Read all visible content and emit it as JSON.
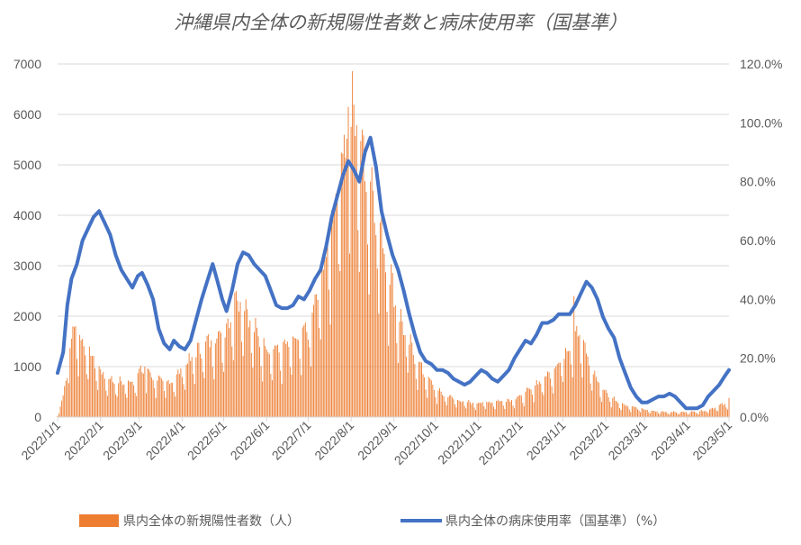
{
  "chart_data": {
    "type": "bar+line",
    "title": "沖縄県内全体の新規陽性者数と病床使用率（国基準）",
    "y_left_ticks": [
      "0",
      "1000",
      "2000",
      "3000",
      "4000",
      "5000",
      "6000",
      "7000"
    ],
    "y_right_ticks": [
      "0.0%",
      "20.0%",
      "40.0%",
      "60.0%",
      "80.0%",
      "100.0%",
      "120.0%"
    ],
    "x_ticks": [
      "2022/1/1",
      "2022/2/1",
      "2022/3/1",
      "2022/4/1",
      "2022/5/1",
      "2022/6/1",
      "2022/7/1",
      "2022/8/1",
      "2022/9/1",
      "2022/10/1",
      "2022/11/1",
      "2022/12/1",
      "2023/1/1",
      "2023/2/1",
      "2023/3/1",
      "2023/4/1",
      "2023/5/1"
    ],
    "ylim_left": [
      0,
      7000
    ],
    "ylim_right": [
      0,
      120
    ],
    "xlim": [
      "2022/1/1",
      "2023/5/1"
    ],
    "grid": "horizontal",
    "legend_position": "bottom",
    "colors": {
      "bars": "#ED7D31",
      "line": "#4472C4",
      "grid": "#D9D9D9",
      "text": "#595959"
    },
    "series": [
      {
        "name": "県内全体の新規陽性者数（人）",
        "type": "bar",
        "axis": "left",
        "anchors_approx": [
          [
            "2022/1/1",
            30
          ],
          [
            "2022/1/5",
            400
          ],
          [
            "2022/1/9",
            1200
          ],
          [
            "2022/1/13",
            1700
          ],
          [
            "2022/1/17",
            1500
          ],
          [
            "2022/1/22",
            1300
          ],
          [
            "2022/1/28",
            1050
          ],
          [
            "2022/2/3",
            800
          ],
          [
            "2022/2/10",
            700
          ],
          [
            "2022/2/18",
            650
          ],
          [
            "2022/2/25",
            700
          ],
          [
            "2022/3/3",
            900
          ],
          [
            "2022/3/8",
            850
          ],
          [
            "2022/3/15",
            700
          ],
          [
            "2022/3/22",
            650
          ],
          [
            "2022/3/29",
            800
          ],
          [
            "2022/4/4",
            1000
          ],
          [
            "2022/4/10",
            1200
          ],
          [
            "2022/4/17",
            1350
          ],
          [
            "2022/4/24",
            1500
          ],
          [
            "2022/5/2",
            1650
          ],
          [
            "2022/5/10",
            2300
          ],
          [
            "2022/5/15",
            2250
          ],
          [
            "2022/5/22",
            1700
          ],
          [
            "2022/5/29",
            1400
          ],
          [
            "2022/6/5",
            1300
          ],
          [
            "2022/6/12",
            1300
          ],
          [
            "2022/6/19",
            1400
          ],
          [
            "2022/6/26",
            1500
          ],
          [
            "2022/7/3",
            1800
          ],
          [
            "2022/7/10",
            2600
          ],
          [
            "2022/7/16",
            3400
          ],
          [
            "2022/7/22",
            4500
          ],
          [
            "2022/7/27",
            5300
          ],
          [
            "2022/8/1",
            5700
          ],
          [
            "2022/8/6",
            5500
          ],
          [
            "2022/8/11",
            5000
          ],
          [
            "2022/8/17",
            4300
          ],
          [
            "2022/8/23",
            3500
          ],
          [
            "2022/8/29",
            2700
          ],
          [
            "2022/9/5",
            1900
          ],
          [
            "2022/9/12",
            1400
          ],
          [
            "2022/9/19",
            1000
          ],
          [
            "2022/9/26",
            700
          ],
          [
            "2022/10/3",
            480
          ],
          [
            "2022/10/12",
            380
          ],
          [
            "2022/10/20",
            300
          ],
          [
            "2022/10/28",
            270
          ],
          [
            "2022/11/5",
            280
          ],
          [
            "2022/11/13",
            300
          ],
          [
            "2022/11/21",
            320
          ],
          [
            "2022/11/28",
            350
          ],
          [
            "2022/12/5",
            450
          ],
          [
            "2022/12/12",
            620
          ],
          [
            "2022/12/19",
            750
          ],
          [
            "2022/12/26",
            950
          ],
          [
            "2023/1/2",
            1200
          ],
          [
            "2023/1/7",
            1500
          ],
          [
            "2023/1/11",
            1700
          ],
          [
            "2023/1/16",
            1350
          ],
          [
            "2023/1/22",
            900
          ],
          [
            "2023/1/29",
            550
          ],
          [
            "2023/2/5",
            380
          ],
          [
            "2023/2/12",
            260
          ],
          [
            "2023/2/19",
            200
          ],
          [
            "2023/2/28",
            150
          ],
          [
            "2023/3/8",
            110
          ],
          [
            "2023/3/18",
            100
          ],
          [
            "2023/3/28",
            95
          ],
          [
            "2023/4/5",
            100
          ],
          [
            "2023/4/12",
            120
          ],
          [
            "2023/4/18",
            160
          ],
          [
            "2023/4/24",
            220
          ],
          [
            "2023/5/1",
            270
          ]
        ],
        "peaks": [
          [
            "2022/1/14",
            1800
          ],
          [
            "2022/3/5",
            1000
          ],
          [
            "2022/5/10",
            2500
          ],
          [
            "2022/7/30",
            6150
          ],
          [
            "2022/8/9",
            5700
          ],
          [
            "2023/1/9",
            2400
          ],
          [
            "2023/5/1",
            380
          ]
        ]
      },
      {
        "name": "県内全体の病床使用率（国基準）（%）",
        "type": "line",
        "axis": "right",
        "points_approx": [
          [
            "2022/1/1",
            15
          ],
          [
            "2022/1/5",
            22
          ],
          [
            "2022/1/8",
            38
          ],
          [
            "2022/1/11",
            47
          ],
          [
            "2022/1/15",
            52
          ],
          [
            "2022/1/19",
            60
          ],
          [
            "2022/1/23",
            64
          ],
          [
            "2022/1/27",
            68
          ],
          [
            "2022/1/31",
            70
          ],
          [
            "2022/2/4",
            66
          ],
          [
            "2022/2/8",
            62
          ],
          [
            "2022/2/12",
            55
          ],
          [
            "2022/2/16",
            50
          ],
          [
            "2022/2/20",
            47
          ],
          [
            "2022/2/24",
            44
          ],
          [
            "2022/2/28",
            48
          ],
          [
            "2022/3/3",
            49
          ],
          [
            "2022/3/7",
            45
          ],
          [
            "2022/3/11",
            40
          ],
          [
            "2022/3/15",
            30
          ],
          [
            "2022/3/19",
            25
          ],
          [
            "2022/3/23",
            23
          ],
          [
            "2022/3/26",
            26
          ],
          [
            "2022/3/30",
            24
          ],
          [
            "2022/4/3",
            23
          ],
          [
            "2022/4/7",
            26
          ],
          [
            "2022/4/11",
            33
          ],
          [
            "2022/4/15",
            40
          ],
          [
            "2022/4/19",
            46
          ],
          [
            "2022/4/23",
            52
          ],
          [
            "2022/4/26",
            47
          ],
          [
            "2022/4/30",
            40
          ],
          [
            "2022/5/3",
            36
          ],
          [
            "2022/5/7",
            43
          ],
          [
            "2022/5/11",
            52
          ],
          [
            "2022/5/15",
            56
          ],
          [
            "2022/5/19",
            55
          ],
          [
            "2022/5/23",
            52
          ],
          [
            "2022/5/27",
            50
          ],
          [
            "2022/5/31",
            48
          ],
          [
            "2022/6/4",
            43
          ],
          [
            "2022/6/8",
            38
          ],
          [
            "2022/6/12",
            37
          ],
          [
            "2022/6/16",
            37
          ],
          [
            "2022/6/20",
            38
          ],
          [
            "2022/6/24",
            41
          ],
          [
            "2022/6/28",
            40
          ],
          [
            "2022/7/2",
            43
          ],
          [
            "2022/7/6",
            47
          ],
          [
            "2022/7/10",
            50
          ],
          [
            "2022/7/14",
            58
          ],
          [
            "2022/7/18",
            68
          ],
          [
            "2022/7/22",
            75
          ],
          [
            "2022/7/26",
            82
          ],
          [
            "2022/7/30",
            87
          ],
          [
            "2022/8/3",
            84
          ],
          [
            "2022/8/7",
            80
          ],
          [
            "2022/8/11",
            90
          ],
          [
            "2022/8/15",
            95
          ],
          [
            "2022/8/19",
            85
          ],
          [
            "2022/8/23",
            70
          ],
          [
            "2022/8/27",
            62
          ],
          [
            "2022/8/31",
            55
          ],
          [
            "2022/9/4",
            50
          ],
          [
            "2022/9/8",
            43
          ],
          [
            "2022/9/12",
            35
          ],
          [
            "2022/9/16",
            28
          ],
          [
            "2022/9/20",
            22
          ],
          [
            "2022/9/24",
            19
          ],
          [
            "2022/9/28",
            18
          ],
          [
            "2022/10/2",
            16
          ],
          [
            "2022/10/6",
            16
          ],
          [
            "2022/10/10",
            15
          ],
          [
            "2022/10/14",
            13
          ],
          [
            "2022/10/18",
            12
          ],
          [
            "2022/10/22",
            11
          ],
          [
            "2022/10/26",
            12
          ],
          [
            "2022/10/30",
            14
          ],
          [
            "2022/11/3",
            16
          ],
          [
            "2022/11/7",
            15
          ],
          [
            "2022/11/11",
            13
          ],
          [
            "2022/11/15",
            12
          ],
          [
            "2022/11/19",
            14
          ],
          [
            "2022/11/23",
            16
          ],
          [
            "2022/11/27",
            20
          ],
          [
            "2022/12/1",
            23
          ],
          [
            "2022/12/5",
            26
          ],
          [
            "2022/12/9",
            25
          ],
          [
            "2022/12/13",
            28
          ],
          [
            "2022/12/17",
            32
          ],
          [
            "2022/12/21",
            32
          ],
          [
            "2022/12/25",
            33
          ],
          [
            "2022/12/29",
            35
          ],
          [
            "2023/1/2",
            35
          ],
          [
            "2023/1/6",
            35
          ],
          [
            "2023/1/10",
            38
          ],
          [
            "2023/1/14",
            42
          ],
          [
            "2023/1/18",
            46
          ],
          [
            "2023/1/22",
            44
          ],
          [
            "2023/1/26",
            40
          ],
          [
            "2023/1/30",
            34
          ],
          [
            "2023/2/3",
            30
          ],
          [
            "2023/2/7",
            27
          ],
          [
            "2023/2/11",
            20
          ],
          [
            "2023/2/15",
            15
          ],
          [
            "2023/2/19",
            10
          ],
          [
            "2023/2/23",
            7
          ],
          [
            "2023/2/27",
            5
          ],
          [
            "2023/3/3",
            5
          ],
          [
            "2023/3/7",
            6
          ],
          [
            "2023/3/11",
            7
          ],
          [
            "2023/3/15",
            7
          ],
          [
            "2023/3/19",
            8
          ],
          [
            "2023/3/23",
            7
          ],
          [
            "2023/3/27",
            5
          ],
          [
            "2023/3/31",
            3
          ],
          [
            "2023/4/4",
            3
          ],
          [
            "2023/4/8",
            3
          ],
          [
            "2023/4/12",
            4
          ],
          [
            "2023/4/16",
            7
          ],
          [
            "2023/4/20",
            9
          ],
          [
            "2023/4/24",
            11
          ],
          [
            "2023/4/28",
            14
          ],
          [
            "2023/5/1",
            16
          ]
        ]
      }
    ]
  }
}
